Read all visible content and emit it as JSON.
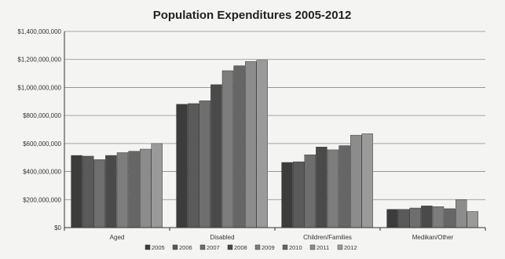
{
  "chart_data": {
    "type": "bar",
    "title": "Population Expenditures 2005-2012",
    "xlabel": "",
    "ylabel": "",
    "categories": [
      "Aged",
      "Disabled",
      "Children/Families",
      "Medikan/Other"
    ],
    "ylim": [
      0,
      1400000000
    ],
    "yticks": [
      0,
      200000000,
      400000000,
      600000000,
      800000000,
      1000000000,
      1200000000,
      1400000000
    ],
    "ytick_labels": [
      "$0",
      "$200,000,000",
      "$400,000,000",
      "$600,000,000",
      "$800,000,000",
      "$1,000,000,000",
      "$1,200,000,000",
      "$1,400,000,000"
    ],
    "grid": true,
    "legend_position": "bottom",
    "series": [
      {
        "name": "2005",
        "values": [
          515000000,
          880000000,
          465000000,
          130000000
        ]
      },
      {
        "name": "2006",
        "values": [
          510000000,
          885000000,
          470000000,
          130000000
        ]
      },
      {
        "name": "2007",
        "values": [
          485000000,
          905000000,
          520000000,
          140000000
        ]
      },
      {
        "name": "2008",
        "values": [
          515000000,
          1020000000,
          575000000,
          155000000
        ]
      },
      {
        "name": "2009",
        "values": [
          535000000,
          1120000000,
          555000000,
          150000000
        ]
      },
      {
        "name": "2010",
        "values": [
          545000000,
          1155000000,
          585000000,
          135000000
        ]
      },
      {
        "name": "2011",
        "values": [
          560000000,
          1185000000,
          660000000,
          200000000
        ]
      },
      {
        "name": "2012",
        "values": [
          600000000,
          1195000000,
          670000000,
          115000000
        ]
      }
    ],
    "series_colors": [
      "#3c3c3c",
      "#5a5a5a",
      "#6e6e6e",
      "#4a4a4a",
      "#7d7d7d",
      "#666666",
      "#8c8c8c",
      "#9a9a9a"
    ]
  }
}
